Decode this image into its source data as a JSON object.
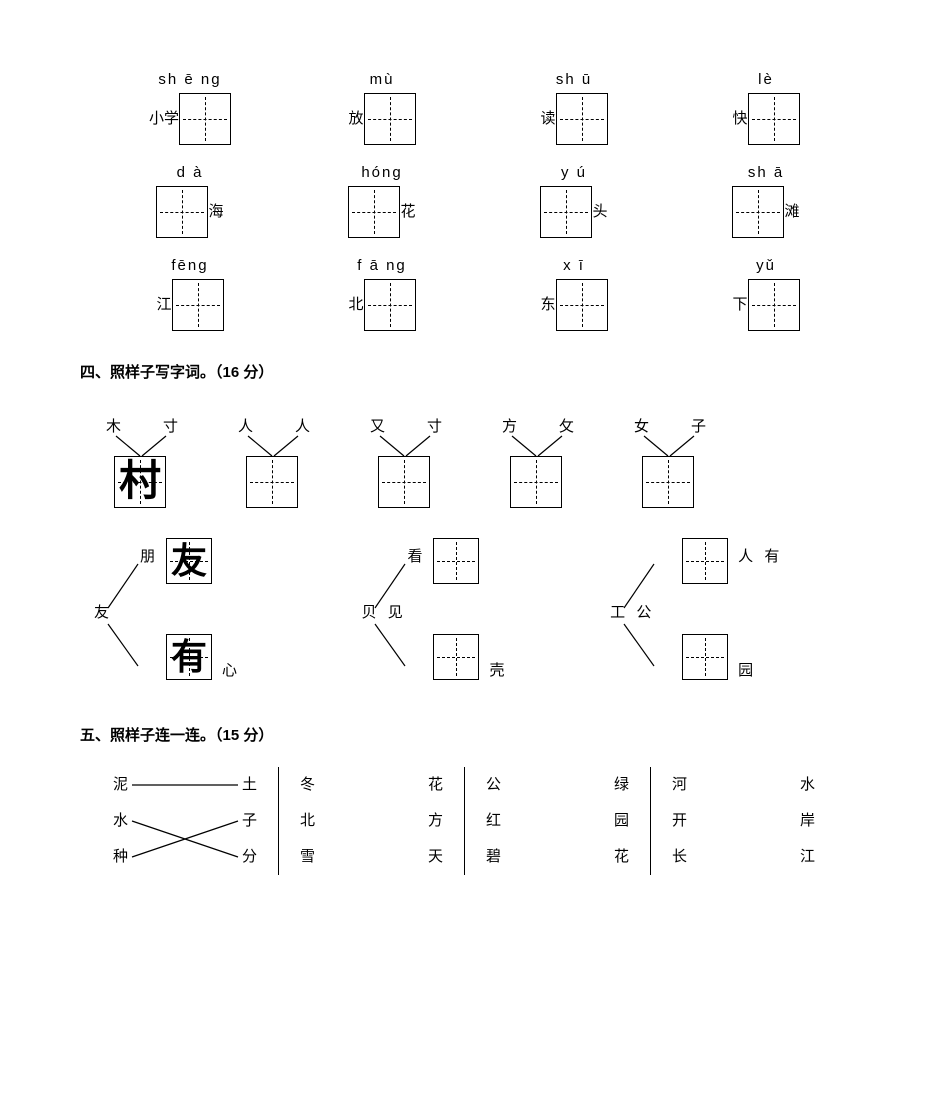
{
  "section3_rows": [
    [
      {
        "pinyin": "sh ē ng",
        "leftLabel": "小学",
        "rightLabel": ""
      },
      {
        "pinyin": "mù",
        "leftLabel": "放",
        "rightLabel": ""
      },
      {
        "pinyin": "sh ū",
        "leftLabel": "读",
        "rightLabel": ""
      },
      {
        "pinyin": "lè",
        "leftLabel": "快",
        "rightLabel": ""
      }
    ],
    [
      {
        "pinyin": "d à",
        "leftLabel": "",
        "rightLabel": "海"
      },
      {
        "pinyin": "hóng",
        "leftLabel": "",
        "rightLabel": "花"
      },
      {
        "pinyin": "y ú",
        "leftLabel": "",
        "rightLabel": "头"
      },
      {
        "pinyin": "sh ā",
        "leftLabel": "",
        "rightLabel": "滩"
      }
    ],
    [
      {
        "pinyin": "fēng",
        "leftLabel": "江",
        "rightLabel": ""
      },
      {
        "pinyin": "f ā ng",
        "leftLabel": "北",
        "rightLabel": ""
      },
      {
        "pinyin": "x ī",
        "leftLabel": "东",
        "rightLabel": ""
      },
      {
        "pinyin": "yǔ",
        "leftLabel": "下",
        "rightLabel": ""
      }
    ]
  ],
  "section4": {
    "heading": "四、照样子写字词。（16 分）",
    "combos": [
      {
        "left": "木",
        "right": "寸",
        "result": "村"
      },
      {
        "left": "人",
        "right": "人",
        "result": ""
      },
      {
        "left": "又",
        "right": "寸",
        "result": ""
      },
      {
        "left": "方",
        "right": "攵",
        "result": ""
      },
      {
        "left": "女",
        "right": "子",
        "result": ""
      }
    ],
    "branches": [
      {
        "src": "友",
        "topChar": "朋",
        "topBox": "友",
        "topRes": "",
        "botChar": "",
        "botBox": "有",
        "botRes": "心"
      },
      {
        "src": "贝",
        "srcSuffix": "见",
        "topChar": "看",
        "topBox": "",
        "topRes": "",
        "botChar": "",
        "botBox": "",
        "botRes": "壳"
      },
      {
        "src": "工",
        "srcSuffix": "公",
        "topChar": "",
        "topBox": "",
        "topRes": "人",
        "topResSuffix": "有",
        "botChar": "",
        "botBox": "",
        "botRes": "园"
      }
    ]
  },
  "section5": {
    "heading": "五、照样子连一连。（15 分）",
    "columns": [
      {
        "left": [
          "泥",
          "水",
          "种"
        ],
        "right": [
          "土",
          "子",
          "分"
        ],
        "lines": [
          [
            0,
            0
          ],
          [
            1,
            2
          ],
          [
            2,
            1
          ]
        ]
      },
      {
        "left": [
          "冬",
          "北",
          "雪"
        ],
        "right": [
          "花",
          "方",
          "天"
        ],
        "lines": []
      },
      {
        "left": [
          "公",
          "红",
          "碧"
        ],
        "right": [
          "绿",
          "园",
          "花"
        ],
        "lines": []
      },
      {
        "left": [
          "河",
          "开",
          "长"
        ],
        "right": [
          "水",
          "岸",
          "江"
        ],
        "lines": []
      }
    ]
  }
}
